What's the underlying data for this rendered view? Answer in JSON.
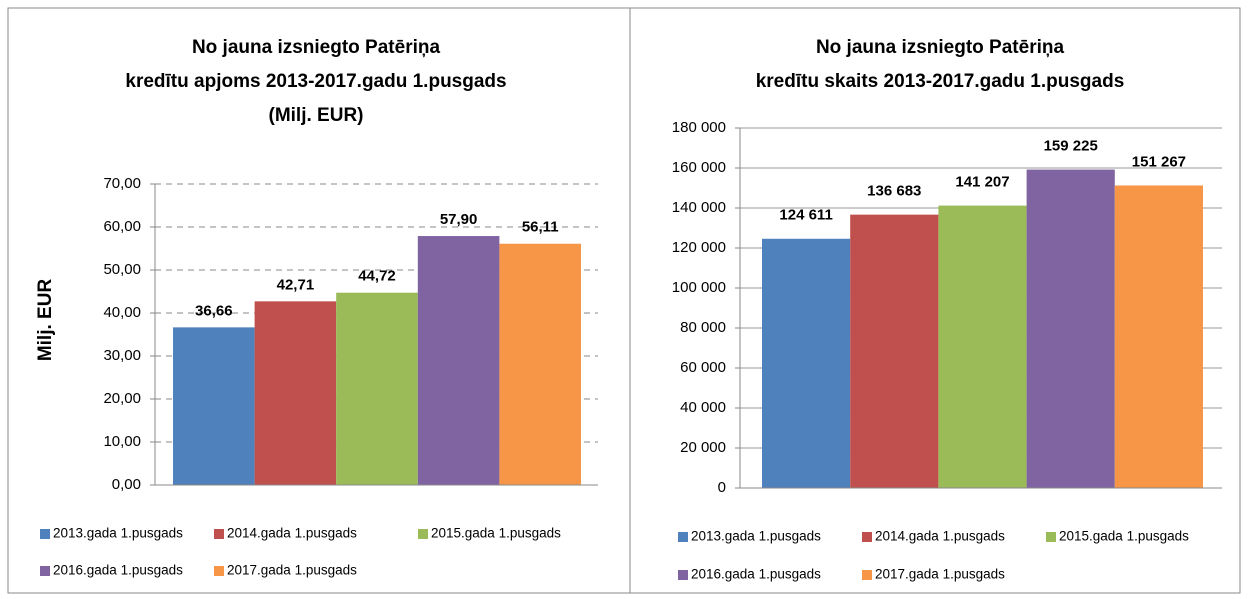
{
  "chart_data": [
    {
      "type": "bar",
      "title": [
        "No jauna izsniegto Patēriņa",
        "kredītu apjoms 2013-2017.gadu 1.pusgads",
        "(Milj. EUR)"
      ],
      "y_label": "Milj. EUR",
      "series": [
        {
          "name": "2013.gada 1.pusgads",
          "color": "#4f81bd",
          "values": [
            36.66
          ],
          "value_labels": [
            "36,66"
          ]
        },
        {
          "name": "2014.gada 1.pusgads",
          "color": "#c0504d",
          "values": [
            42.71
          ],
          "value_labels": [
            "42,71"
          ]
        },
        {
          "name": "2015.gada 1.pusgads",
          "color": "#9bbb59",
          "values": [
            44.72
          ],
          "value_labels": [
            "44,72"
          ]
        },
        {
          "name": "2016.gada 1.pusgads",
          "color": "#8064a2",
          "values": [
            57.9
          ],
          "value_labels": [
            "57,90"
          ]
        },
        {
          "name": "2017.gada 1.pusgads",
          "color": "#f79646",
          "values": [
            56.11
          ],
          "value_labels": [
            "56,11"
          ]
        }
      ],
      "ylim": [
        0,
        70
      ],
      "yticks": [
        {
          "value": 0,
          "label": "0,00"
        },
        {
          "value": 10,
          "label": "10,00"
        },
        {
          "value": 20,
          "label": "20,00"
        },
        {
          "value": 30,
          "label": "30,00"
        },
        {
          "value": 40,
          "label": "40,00"
        },
        {
          "value": 50,
          "label": "50,00"
        },
        {
          "value": 60,
          "label": "60,00"
        },
        {
          "value": 70,
          "label": "70,00"
        }
      ],
      "grid": true,
      "grid_style": "dashed",
      "legend": "bottom"
    },
    {
      "type": "bar",
      "title": [
        "No jauna izsniegto Patēriņa",
        "kredītu skaits 2013-2017.gadu 1.pusgads"
      ],
      "series": [
        {
          "name": "2013.gada 1.pusgads",
          "color": "#4f81bd",
          "values": [
            124611
          ],
          "value_labels": [
            "124 611"
          ]
        },
        {
          "name": "2014.gada 1.pusgads",
          "color": "#c0504d",
          "values": [
            136683
          ],
          "value_labels": [
            "136 683"
          ]
        },
        {
          "name": "2015.gada 1.pusgads",
          "color": "#9bbb59",
          "values": [
            141207
          ],
          "value_labels": [
            "141 207"
          ]
        },
        {
          "name": "2016.gada 1.pusgads",
          "color": "#8064a2",
          "values": [
            159225
          ],
          "value_labels": [
            "159 225"
          ]
        },
        {
          "name": "2017.gada 1.pusgads",
          "color": "#f79646",
          "values": [
            151267
          ],
          "value_labels": [
            "151 267"
          ]
        }
      ],
      "ylim": [
        0,
        180000
      ],
      "yticks": [
        0,
        {
          "value": 20000,
          "label": "20 000"
        },
        {
          "value": 40000,
          "label": "40 000"
        },
        {
          "value": 60000,
          "label": "60 000"
        },
        {
          "value": 80000,
          "label": "80 000"
        },
        {
          "value": 100000,
          "label": "100 000"
        },
        {
          "value": 120000,
          "label": "120 000"
        },
        {
          "value": 140000,
          "label": "140 000"
        },
        {
          "value": 160000,
          "label": "160 000"
        },
        {
          "value": 180000,
          "label": "180 000"
        }
      ],
      "grid": true,
      "grid_style": "solid",
      "legend": "bottom"
    }
  ]
}
